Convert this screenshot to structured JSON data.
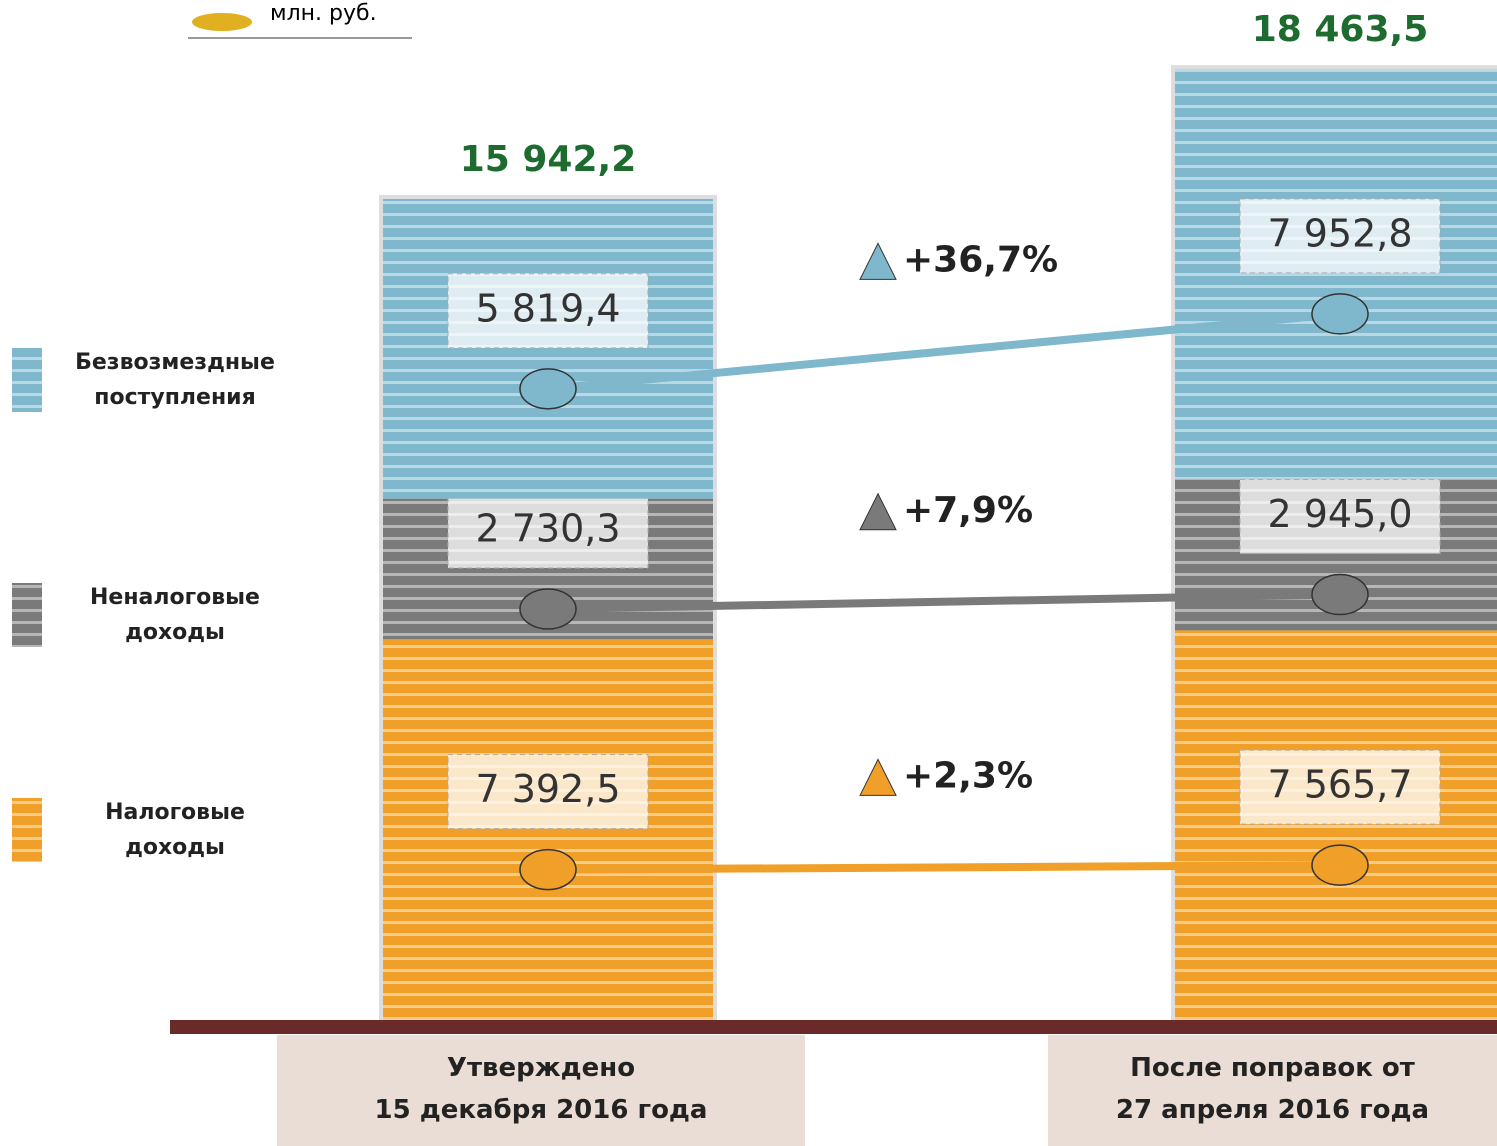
{
  "chart_data": {
    "type": "bar",
    "stacked": true,
    "unit": "млн. руб.",
    "categories": [
      "Утверждено\n15 декабря 2016 года",
      "После поправок от\n27 апреля 2016 года"
    ],
    "totals": [
      15942.2,
      18463.5
    ],
    "total_labels": [
      "15 942,2",
      "18 463,5"
    ],
    "series": [
      {
        "name": "Налоговые\nдоходы",
        "color": "#f0a028",
        "values": [
          7392.5,
          7565.7
        ],
        "value_labels": [
          "7 392,5",
          "7 565,7"
        ],
        "change_label": "+2,3%"
      },
      {
        "name": "Неналоговые\nдоходы",
        "color": "#7a7a7a",
        "values": [
          2730.3,
          2945.0
        ],
        "value_labels": [
          "2 730,3",
          "2 945,0"
        ],
        "change_label": "+7,9%"
      },
      {
        "name": "Безвозмездные\nпоступления",
        "color": "#7fb8cc",
        "values": [
          5819.4,
          7952.8
        ],
        "value_labels": [
          "5 819,4",
          "7 952,8"
        ],
        "change_label": "+36,7%"
      }
    ]
  }
}
